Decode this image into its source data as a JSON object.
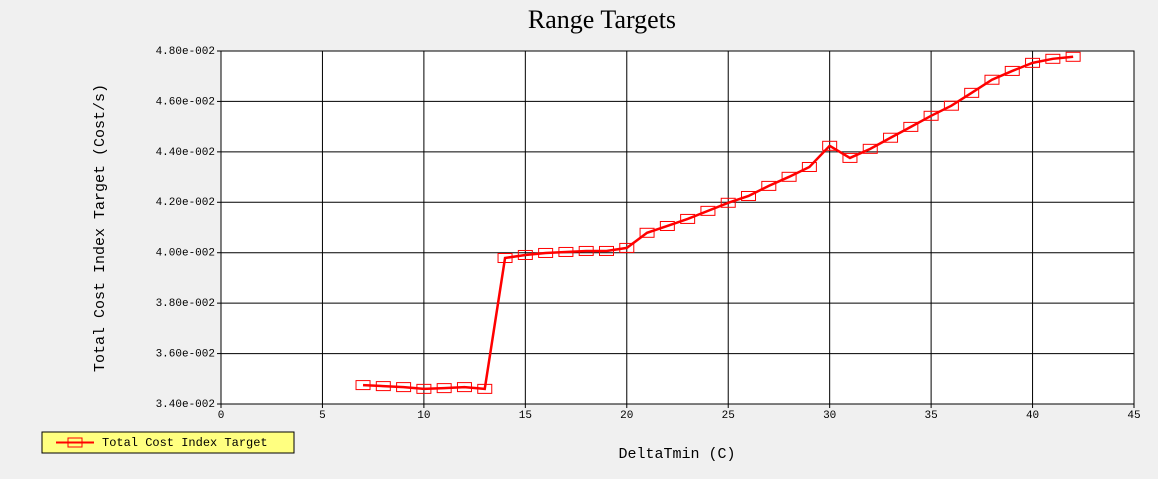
{
  "chart_data": {
    "type": "line",
    "title": "Range Targets",
    "x_label": "DeltaTmin (C)",
    "y_label": "Total Cost Index Target (Cost/s)",
    "x": [
      7,
      8,
      9,
      10,
      11,
      12,
      13,
      14,
      15,
      16,
      17,
      18,
      19,
      20,
      21,
      22,
      23,
      24,
      25,
      26,
      27,
      28,
      29,
      30,
      31,
      32,
      33,
      34,
      35,
      36,
      37,
      38,
      39,
      40,
      41,
      42
    ],
    "series": [
      {
        "name": "Total Cost Index Target",
        "color": "#ff0000",
        "marker": "square",
        "values": [
          0.03475,
          0.03471,
          0.03467,
          0.0346,
          0.03463,
          0.03467,
          0.0346,
          0.03979,
          0.03991,
          0.03999,
          0.04003,
          0.04007,
          0.04007,
          0.04019,
          0.04079,
          0.04106,
          0.04134,
          0.04166,
          0.04198,
          0.04225,
          0.04265,
          0.04301,
          0.0434,
          0.04424,
          0.04376,
          0.04412,
          0.04456,
          0.04499,
          0.04543,
          0.04583,
          0.04634,
          0.04686,
          0.04721,
          0.04753,
          0.04769,
          0.04777
        ]
      }
    ],
    "xlim": [
      0,
      45
    ],
    "xticks": [
      0,
      5,
      10,
      15,
      20,
      25,
      30,
      35,
      40,
      45
    ],
    "ylim": [
      0.034,
      0.048
    ],
    "yticks": [
      {
        "value": 0.034,
        "label": "3.40e-002"
      },
      {
        "value": 0.036,
        "label": "3.60e-002"
      },
      {
        "value": 0.038,
        "label": "3.80e-002"
      },
      {
        "value": 0.04,
        "label": "4.00e-002"
      },
      {
        "value": 0.042,
        "label": "4.20e-002"
      },
      {
        "value": 0.044,
        "label": "4.40e-002"
      },
      {
        "value": 0.046,
        "label": "4.60e-002"
      },
      {
        "value": 0.048,
        "label": "4.80e-002"
      }
    ],
    "grid": true,
    "legend_position": "bottom-left"
  }
}
